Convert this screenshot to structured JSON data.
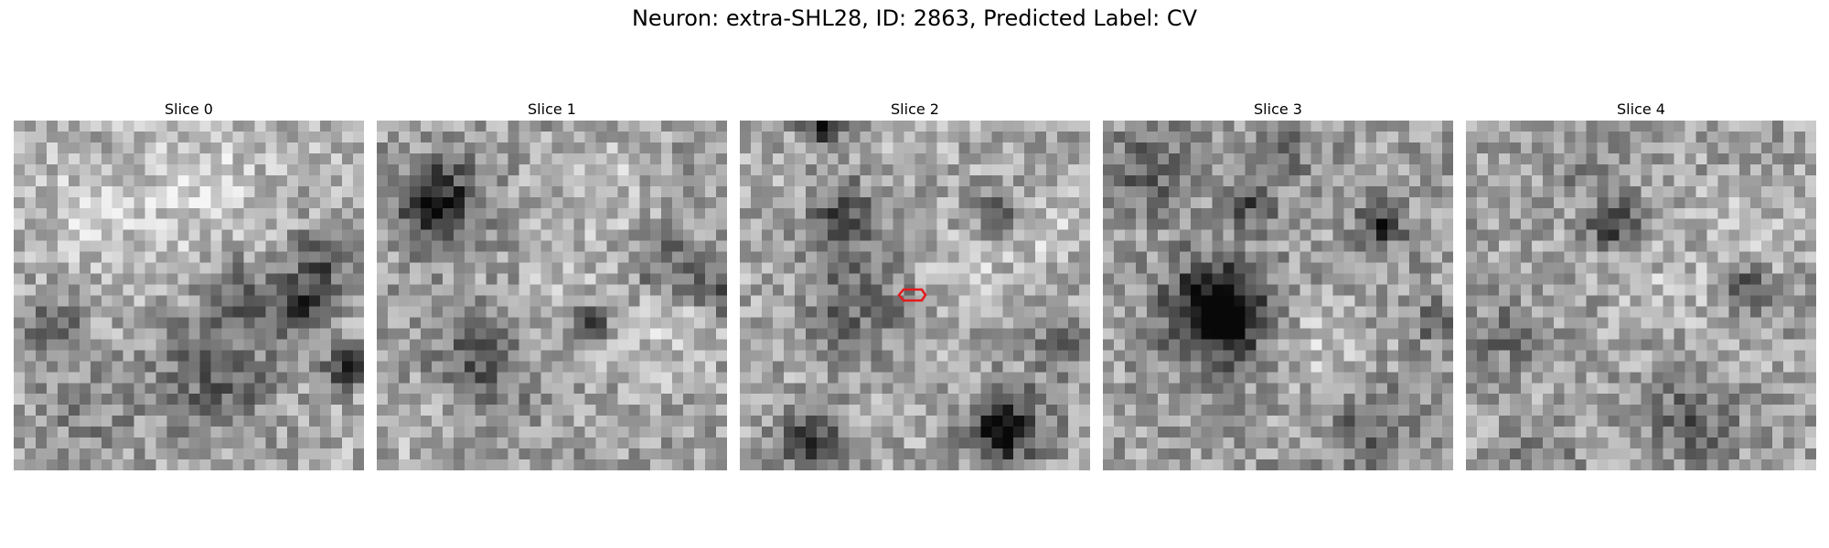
{
  "title": "Neuron: extra-SHL28, ID: 2863, Predicted Label: CV",
  "slices": [
    {
      "label": "Slice 0"
    },
    {
      "label": "Slice 1"
    },
    {
      "label": "Slice 2",
      "has_marker": true
    },
    {
      "label": "Slice 3"
    },
    {
      "label": "Slice 4"
    }
  ],
  "colors": {
    "marker": "#e41a1c",
    "colormap": "gray"
  }
}
